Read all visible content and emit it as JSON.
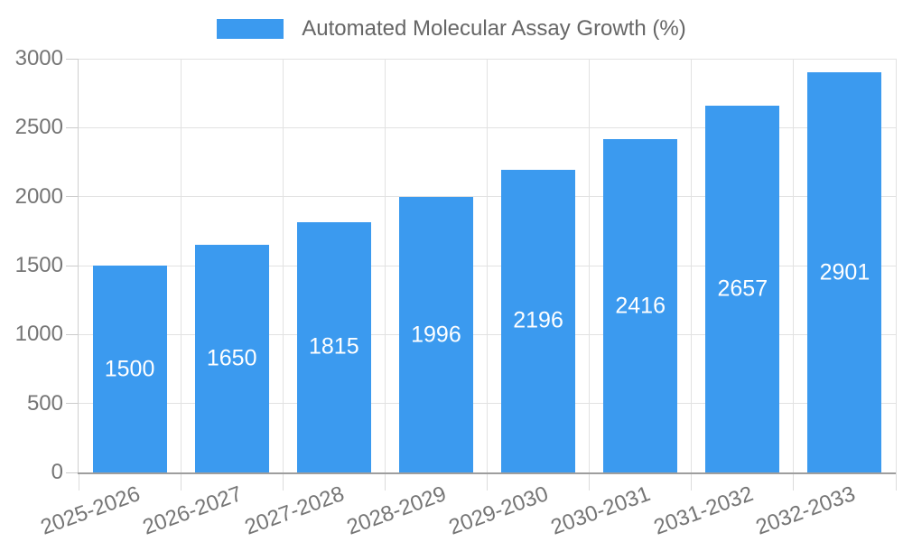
{
  "legend": {
    "item_label": "Automated Molecular Assay Growth (%)"
  },
  "chart_data": {
    "type": "bar",
    "title": "Automated Molecular Assay Growth (%)",
    "categories": [
      "2025-2026",
      "2026-2027",
      "2027-2028",
      "2028-2029",
      "2029-2030",
      "2030-2031",
      "2031-2032",
      "2032-2033"
    ],
    "values": [
      1500,
      1650,
      1815,
      1996,
      2196,
      2416,
      2657,
      2901
    ],
    "series": [
      {
        "name": "Automated Molecular Assay Growth (%)",
        "values": [
          1500,
          1650,
          1815,
          1996,
          2196,
          2416,
          2657,
          2901
        ]
      }
    ],
    "xlabel": "",
    "ylabel": "",
    "ylim": [
      0,
      3000
    ],
    "yticks": [
      0,
      500,
      1000,
      1500,
      2000,
      2500,
      3000
    ],
    "grid": true,
    "legend_position": "top-center",
    "bar_labels_inside": true,
    "colors": {
      "bar": "#3B9AEF",
      "bar_label": "#FFFFFF",
      "axis_label": "#757575",
      "legend_text": "#666666",
      "gridline": "#E2E2E2",
      "y_axis_line": "#CFCFCF",
      "x_axis_line": "#9E9E9E",
      "y_tick": "#CCCCCC",
      "x_tick": "#DCDCDC"
    }
  }
}
